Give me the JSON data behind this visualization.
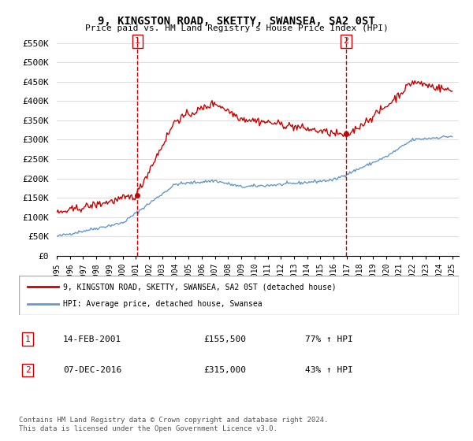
{
  "title": "9, KINGSTON ROAD, SKETTY, SWANSEA, SA2 0ST",
  "subtitle": "Price paid vs. HM Land Registry's House Price Index (HPI)",
  "ylabel_ticks": [
    "£0",
    "£50K",
    "£100K",
    "£150K",
    "£200K",
    "£250K",
    "£300K",
    "£350K",
    "£400K",
    "£450K",
    "£500K",
    "£550K"
  ],
  "ytick_values": [
    0,
    50000,
    100000,
    150000,
    200000,
    250000,
    300000,
    350000,
    400000,
    450000,
    500000,
    550000
  ],
  "ylim": [
    0,
    570000
  ],
  "sale1_date": "14-FEB-2001",
  "sale1_price": 155500,
  "sale1_hpi": "77% ↑ HPI",
  "sale2_date": "07-DEC-2016",
  "sale2_price": 315000,
  "sale2_hpi": "43% ↑ HPI",
  "legend_house": "9, KINGSTON ROAD, SKETTY, SWANSEA, SA2 0ST (detached house)",
  "legend_hpi": "HPI: Average price, detached house, Swansea",
  "footnote": "Contains HM Land Registry data © Crown copyright and database right 2024.\nThis data is licensed under the Open Government Licence v3.0.",
  "house_color": "#cc0000",
  "hpi_color": "#6699cc",
  "vline_color": "#cc0000",
  "background_color": "#ffffff",
  "grid_color": "#dddddd"
}
